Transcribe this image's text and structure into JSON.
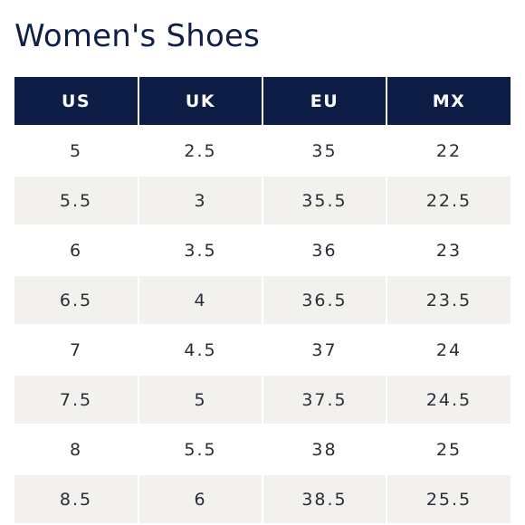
{
  "title": "Women's Shoes",
  "table": {
    "headers": [
      "US",
      "UK",
      "EU",
      "MX"
    ],
    "rows": [
      [
        "5",
        "2.5",
        "35",
        "22"
      ],
      [
        "5.5",
        "3",
        "35.5",
        "22.5"
      ],
      [
        "6",
        "3.5",
        "36",
        "23"
      ],
      [
        "6.5",
        "4",
        "36.5",
        "23.5"
      ],
      [
        "7",
        "4.5",
        "37",
        "24"
      ],
      [
        "7.5",
        "5",
        "37.5",
        "24.5"
      ],
      [
        "8",
        "5.5",
        "38",
        "25"
      ],
      [
        "8.5",
        "6",
        "38.5",
        "25.5"
      ]
    ]
  },
  "colors": {
    "header_bg": "#0d1d45",
    "title_text": "#0f1f45",
    "stripe_bg": "#f2f1ed"
  }
}
